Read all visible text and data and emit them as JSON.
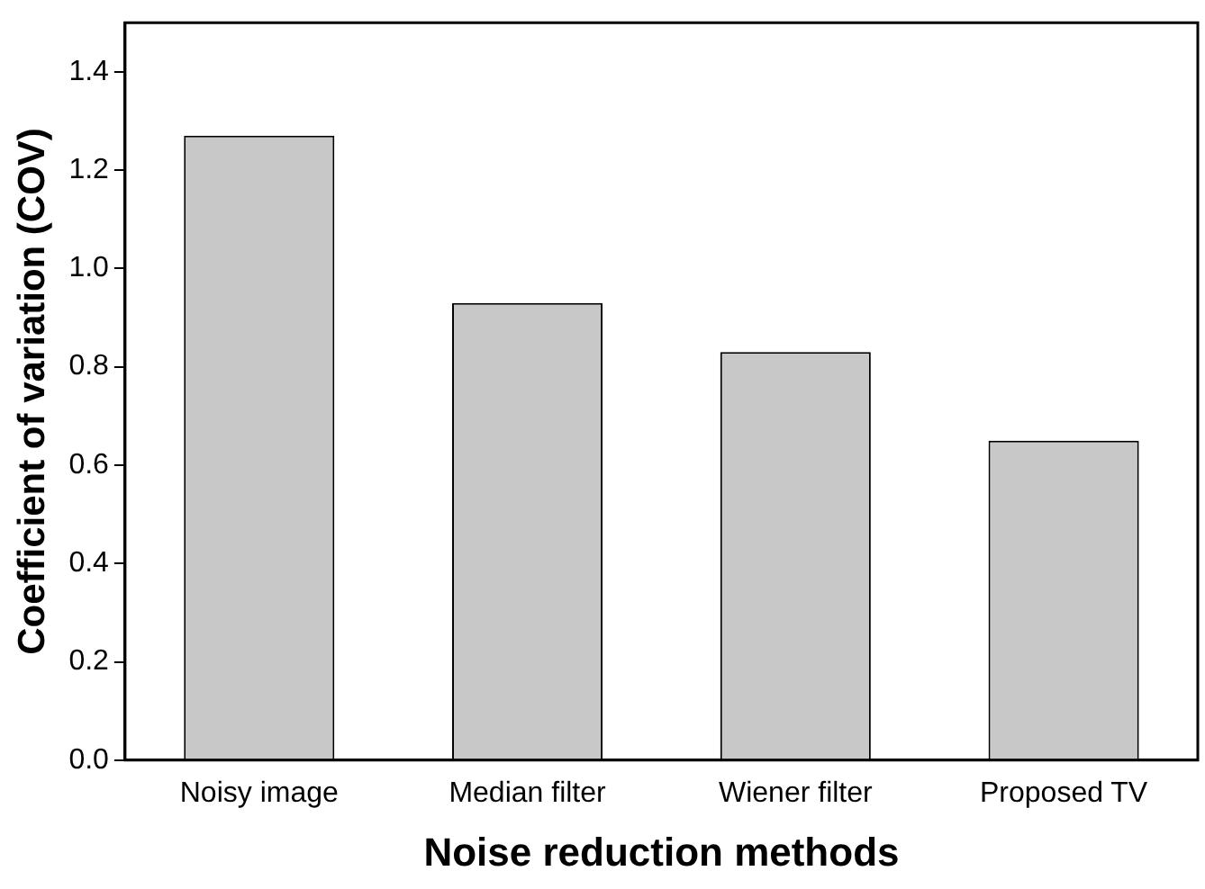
{
  "chart_data": {
    "type": "bar",
    "xlabel": "Noise reduction methods",
    "ylabel": "Coefficient of variation (COV)",
    "categories": [
      "Noisy image",
      "Median filter",
      "Wiener filter",
      "Proposed TV"
    ],
    "values": [
      1.27,
      0.93,
      0.83,
      0.65
    ],
    "color": "#c8c8c8",
    "ylim": [
      0,
      1.5
    ],
    "yticks": [
      {
        "value": 0,
        "label": "0.0"
      },
      0.2,
      0.4,
      0.6,
      0.8,
      {
        "value": 1,
        "label": "1.0"
      },
      1.2,
      1.4
    ],
    "grid": false,
    "legend": false
  }
}
